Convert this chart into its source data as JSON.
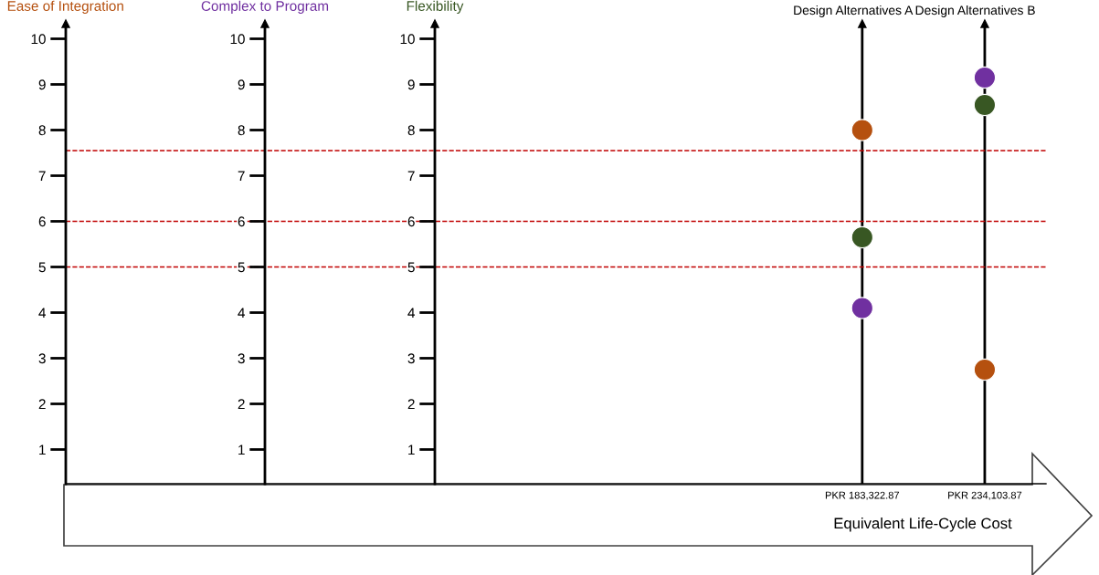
{
  "chart_data": {
    "type": "scatter",
    "categories": [
      null,
      null,
      null,
      null,
      null,
      null,
      "PKR 183,322.87",
      "PKR 234,103.87"
    ],
    "series": [
      {
        "name": "Ease of Integration",
        "color": "#b5500f",
        "values": [
          null,
          null,
          null,
          null,
          null,
          null,
          8,
          2.75
        ]
      },
      {
        "name": "Complex to Program",
        "color": "#7030a0",
        "values": [
          null,
          null,
          null,
          null,
          null,
          null,
          4.1,
          9.15
        ]
      },
      {
        "name": "Flexibility",
        "color": "#385723",
        "values": [
          null,
          null,
          null,
          null,
          null,
          null,
          5.65,
          8.55
        ]
      }
    ],
    "xlabel": "Equivalent Life-Cycle Cost",
    "annotations": [
      "Design Alternatives A",
      "Design Alternatives B"
    ],
    "ylim": [
      0.25,
      10.25
    ],
    "yticks": [
      1,
      2,
      3,
      4,
      5,
      6,
      7,
      8,
      9,
      10
    ],
    "y2lim": [
      0.25,
      10.25
    ],
    "y2ticks": [
      1,
      2,
      3,
      4,
      5,
      6,
      7,
      8,
      9,
      10
    ],
    "y3lim": [
      0.25,
      10.25
    ],
    "y3ticks": [
      1,
      2,
      3,
      4,
      5,
      6,
      7,
      8,
      9,
      10
    ],
    "ref_lines": [
      {
        "axis": "y",
        "value": 6,
        "color": "#c00000",
        "line_style": "dashed"
      },
      {
        "axis": "y",
        "value": 5,
        "color": "#c00000",
        "line_style": "dashed"
      },
      {
        "axis": "y",
        "value": 7.55,
        "color": "#c00000",
        "line_style": "dashed"
      }
    ],
    "grid": "x",
    "marker": "circle",
    "legend": false
  }
}
